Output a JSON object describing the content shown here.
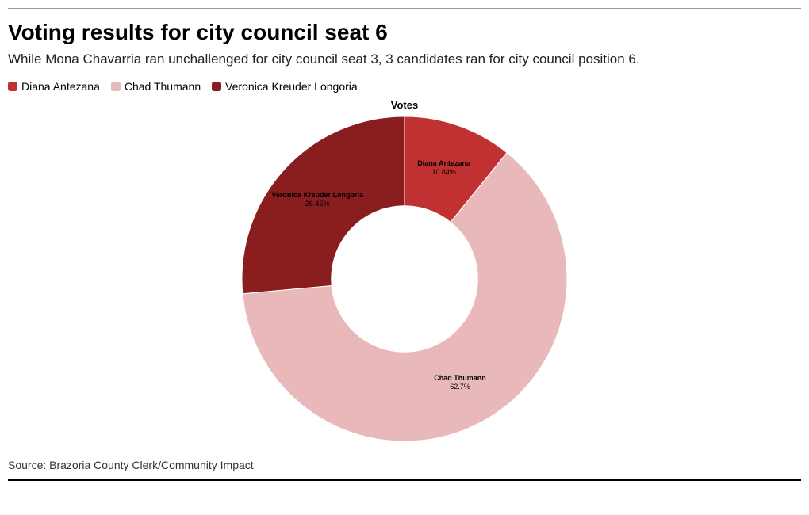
{
  "title": "Voting results for city council seat 6",
  "subtitle": "While Mona Chavarria ran unchallenged for city council seat 3, 3 candidates ran for city council position 6.",
  "chart": {
    "type": "pie",
    "donut_hole_ratio": 0.45,
    "center_title": "Votes",
    "background_color": "#ffffff",
    "title_fontsize": 28,
    "subtitle_fontsize": 17,
    "label_fontsize": 9,
    "start_angle_deg": 90,
    "slices": [
      {
        "label": "Diana Antezana",
        "value": 10.84,
        "pct_text": "10.84%",
        "color": "#c23131"
      },
      {
        "label": "Chad Thumann",
        "value": 62.7,
        "pct_text": "62.7%",
        "color": "#e9b8ba"
      },
      {
        "label": "Veronica Kreuder Longoria",
        "value": 26.46,
        "pct_text": "26.46%",
        "color": "#8a1d1e"
      }
    ]
  },
  "source": "Source: Brazoria County Clerk/Community Impact"
}
